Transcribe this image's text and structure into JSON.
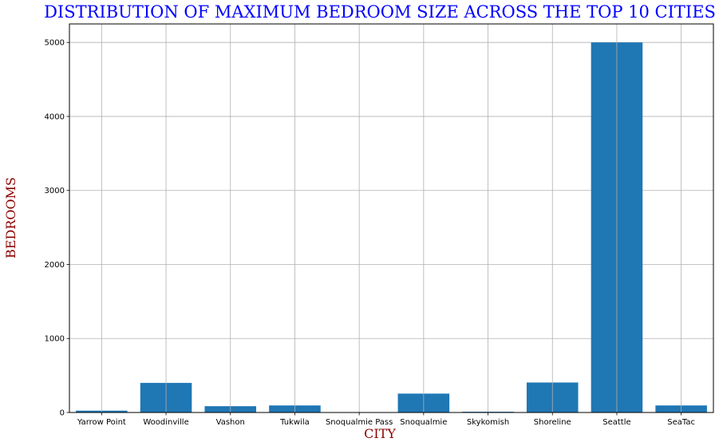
{
  "chart_data": {
    "type": "bar",
    "title": "DISTRIBUTION OF MAXIMUM BEDROOM SIZE ACROSS THE TOP 10 CITIES",
    "xlabel": "CITY",
    "ylabel": "BEDROOMS",
    "categories": [
      "Yarrow Point",
      "Woodinville",
      "Vashon",
      "Tukwila",
      "Snoqualmie Pass",
      "Snoqualmie",
      "Skykomish",
      "Shoreline",
      "Seattle",
      "SeaTac"
    ],
    "values": [
      25,
      400,
      85,
      95,
      5,
      255,
      10,
      405,
      5000,
      95
    ],
    "ylim": [
      0,
      5250
    ],
    "yticks": [
      0,
      1000,
      2000,
      3000,
      4000,
      5000
    ],
    "grid": true,
    "bar_color": "#1f77b4",
    "title_color": "#0000ff",
    "label_color": "#8b0000"
  }
}
